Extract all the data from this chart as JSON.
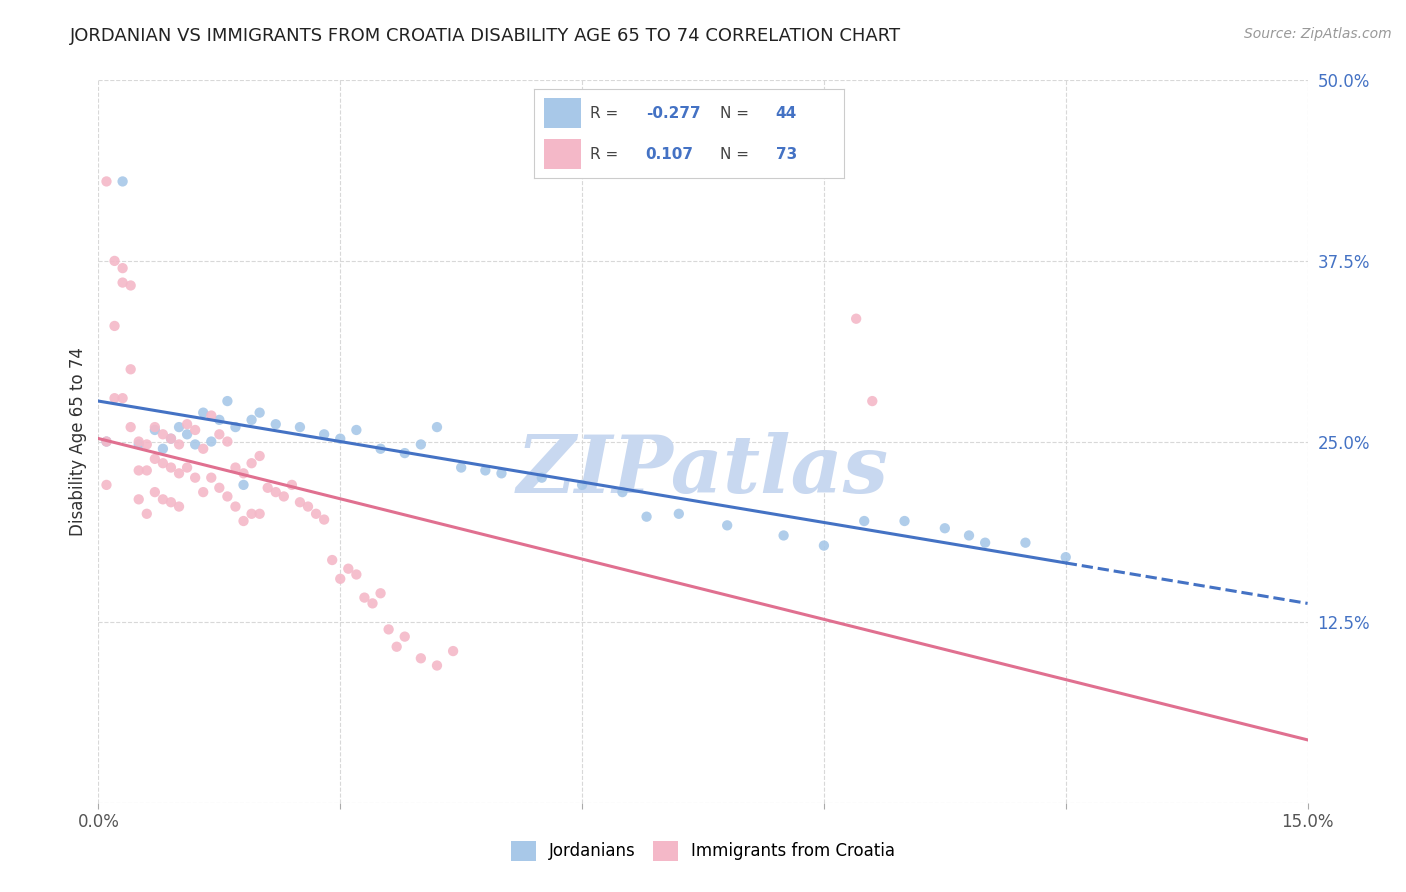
{
  "title": "JORDANIAN VS IMMIGRANTS FROM CROATIA DISABILITY AGE 65 TO 74 CORRELATION CHART",
  "source": "Source: ZipAtlas.com",
  "ylabel": "Disability Age 65 to 74",
  "xlim": [
    0.0,
    0.15
  ],
  "ylim": [
    0.0,
    0.5
  ],
  "blue_R": -0.277,
  "blue_N": 44,
  "pink_R": 0.107,
  "pink_N": 73,
  "blue_color": "#a8c8e8",
  "blue_line_color": "#4472c4",
  "pink_color": "#f4b8c8",
  "pink_line_color": "#e07090",
  "watermark": "ZIPatlas",
  "watermark_color": "#c8d8f0",
  "background_color": "#ffffff",
  "grid_color": "#d8d8d8",
  "blue_scatter_x": [
    0.001,
    0.003,
    0.005,
    0.007,
    0.008,
    0.009,
    0.01,
    0.011,
    0.012,
    0.013,
    0.014,
    0.015,
    0.016,
    0.017,
    0.018,
    0.019,
    0.02,
    0.022,
    0.025,
    0.028,
    0.03,
    0.032,
    0.035,
    0.038,
    0.04,
    0.042,
    0.045,
    0.048,
    0.05,
    0.055,
    0.06,
    0.065,
    0.068,
    0.072,
    0.078,
    0.085,
    0.09,
    0.095,
    0.1,
    0.105,
    0.108,
    0.11,
    0.115,
    0.12
  ],
  "blue_scatter_y": [
    0.25,
    0.43,
    0.248,
    0.258,
    0.245,
    0.252,
    0.26,
    0.255,
    0.248,
    0.27,
    0.25,
    0.265,
    0.278,
    0.26,
    0.22,
    0.265,
    0.27,
    0.262,
    0.26,
    0.255,
    0.252,
    0.258,
    0.245,
    0.242,
    0.248,
    0.26,
    0.232,
    0.23,
    0.228,
    0.225,
    0.22,
    0.215,
    0.198,
    0.2,
    0.192,
    0.185,
    0.178,
    0.195,
    0.195,
    0.19,
    0.185,
    0.18,
    0.18,
    0.17
  ],
  "pink_scatter_x": [
    0.001,
    0.001,
    0.001,
    0.002,
    0.002,
    0.002,
    0.003,
    0.003,
    0.003,
    0.004,
    0.004,
    0.004,
    0.005,
    0.005,
    0.005,
    0.006,
    0.006,
    0.006,
    0.007,
    0.007,
    0.007,
    0.008,
    0.008,
    0.008,
    0.009,
    0.009,
    0.009,
    0.01,
    0.01,
    0.01,
    0.011,
    0.011,
    0.012,
    0.012,
    0.013,
    0.013,
    0.014,
    0.014,
    0.015,
    0.015,
    0.016,
    0.016,
    0.017,
    0.017,
    0.018,
    0.018,
    0.019,
    0.019,
    0.02,
    0.02,
    0.021,
    0.022,
    0.023,
    0.024,
    0.025,
    0.026,
    0.027,
    0.028,
    0.029,
    0.03,
    0.031,
    0.032,
    0.033,
    0.034,
    0.035,
    0.036,
    0.037,
    0.038,
    0.04,
    0.042,
    0.044,
    0.094,
    0.096
  ],
  "pink_scatter_y": [
    0.43,
    0.25,
    0.22,
    0.375,
    0.33,
    0.28,
    0.37,
    0.36,
    0.28,
    0.358,
    0.3,
    0.26,
    0.25,
    0.23,
    0.21,
    0.248,
    0.23,
    0.2,
    0.26,
    0.238,
    0.215,
    0.255,
    0.235,
    0.21,
    0.252,
    0.232,
    0.208,
    0.248,
    0.228,
    0.205,
    0.262,
    0.232,
    0.258,
    0.225,
    0.245,
    0.215,
    0.268,
    0.225,
    0.255,
    0.218,
    0.25,
    0.212,
    0.232,
    0.205,
    0.228,
    0.195,
    0.235,
    0.2,
    0.24,
    0.2,
    0.218,
    0.215,
    0.212,
    0.22,
    0.208,
    0.205,
    0.2,
    0.196,
    0.168,
    0.155,
    0.162,
    0.158,
    0.142,
    0.138,
    0.145,
    0.12,
    0.108,
    0.115,
    0.1,
    0.095,
    0.105,
    0.335,
    0.278
  ]
}
